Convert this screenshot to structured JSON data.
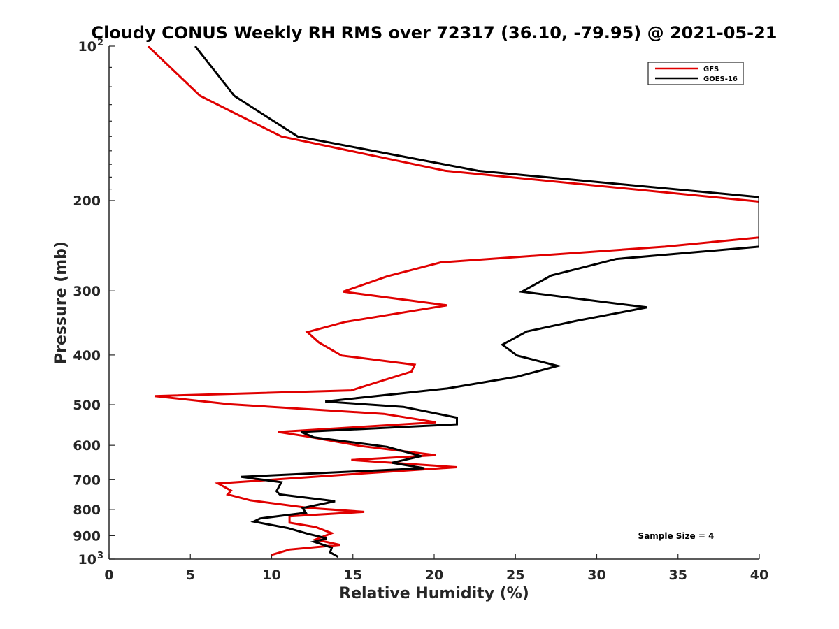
{
  "chart_data": {
    "type": "line",
    "title": "Cloudy CONUS Weekly RH RMS over 72317 (36.10, -79.95) @ 2021-05-21",
    "xlabel": "Relative Humidity (%)",
    "ylabel": "Pressure (mb)",
    "xlim": [
      0,
      40
    ],
    "ylim": [
      100,
      1000
    ],
    "yscale": "log",
    "y_reversed": true,
    "x_ticks": [
      "0",
      "5",
      "10",
      "15",
      "20",
      "25",
      "30",
      "35",
      "40"
    ],
    "y_ticks": [
      {
        "value": 100,
        "label": "10",
        "sup": "2"
      },
      {
        "value": 200,
        "label": "200"
      },
      {
        "value": 300,
        "label": "300"
      },
      {
        "value": 400,
        "label": "400"
      },
      {
        "value": 500,
        "label": "500"
      },
      {
        "value": 600,
        "label": "600"
      },
      {
        "value": 700,
        "label": "700"
      },
      {
        "value": 800,
        "label": "800"
      },
      {
        "value": 900,
        "label": "900"
      },
      {
        "value": 1000,
        "label": "10",
        "sup": "3"
      }
    ],
    "grid": false,
    "legend_position": "top-right",
    "annotation": "Sample Size = 4",
    "series": [
      {
        "name": "GFS",
        "color": "#e00000",
        "points": [
          [
            2.4,
            100
          ],
          [
            5.6,
            125
          ],
          [
            10.6,
            150
          ],
          [
            20.7,
            175
          ],
          [
            40.0,
            201
          ],
          [
            40.0,
            236
          ],
          [
            34.2,
            246
          ],
          [
            20.4,
            264
          ],
          [
            17.1,
            281
          ],
          [
            14.4,
            301
          ],
          [
            20.8,
            320
          ],
          [
            14.5,
            345
          ],
          [
            12.2,
            361
          ],
          [
            12.9,
            378
          ],
          [
            14.3,
            401
          ],
          [
            18.8,
            418
          ],
          [
            18.6,
            431
          ],
          [
            14.9,
            469
          ],
          [
            2.8,
            481
          ],
          [
            7.4,
            499
          ],
          [
            16.9,
            521
          ],
          [
            20.1,
            541
          ],
          [
            10.4,
            565
          ],
          [
            12.1,
            576
          ],
          [
            15.5,
            602
          ],
          [
            20.1,
            627
          ],
          [
            14.9,
            641
          ],
          [
            21.4,
            662
          ],
          [
            16.1,
            679
          ],
          [
            6.7,
            712
          ],
          [
            7.5,
            735
          ],
          [
            7.3,
            748
          ],
          [
            8.7,
            768
          ],
          [
            12.3,
            795
          ],
          [
            15.7,
            809
          ],
          [
            11.1,
            825
          ],
          [
            11.1,
            849
          ],
          [
            12.7,
            866
          ],
          [
            13.7,
            890
          ],
          [
            12.7,
            916
          ],
          [
            14.2,
            938
          ],
          [
            11.1,
            958
          ],
          [
            10.0,
            981
          ]
        ]
      },
      {
        "name": "GOES-16",
        "color": "#000000",
        "points": [
          [
            5.3,
            100
          ],
          [
            7.7,
            125
          ],
          [
            11.6,
            150
          ],
          [
            22.7,
            175
          ],
          [
            40.0,
            197
          ],
          [
            40.0,
            246
          ],
          [
            31.2,
            260
          ],
          [
            27.2,
            280
          ],
          [
            25.4,
            301
          ],
          [
            33.1,
            323
          ],
          [
            28.8,
            343
          ],
          [
            25.7,
            360
          ],
          [
            24.2,
            382
          ],
          [
            25.1,
            401
          ],
          [
            27.6,
            420
          ],
          [
            25.1,
            441
          ],
          [
            20.8,
            465
          ],
          [
            13.3,
            493
          ],
          [
            18.1,
            505
          ],
          [
            21.4,
            530
          ],
          [
            21.4,
            546
          ],
          [
            11.8,
            565
          ],
          [
            12.6,
            579
          ],
          [
            17.1,
            604
          ],
          [
            19.2,
            630
          ],
          [
            17.4,
            649
          ],
          [
            19.4,
            665
          ],
          [
            8.1,
            691
          ],
          [
            10.6,
            708
          ],
          [
            10.3,
            737
          ],
          [
            10.5,
            748
          ],
          [
            13.9,
            771
          ],
          [
            11.9,
            795
          ],
          [
            12.1,
            812
          ],
          [
            9.3,
            833
          ],
          [
            8.9,
            845
          ],
          [
            11.0,
            870
          ],
          [
            12.2,
            892
          ],
          [
            13.4,
            911
          ],
          [
            12.6,
            925
          ],
          [
            13.7,
            950
          ],
          [
            13.6,
            970
          ],
          [
            14.1,
            990
          ]
        ]
      }
    ]
  }
}
